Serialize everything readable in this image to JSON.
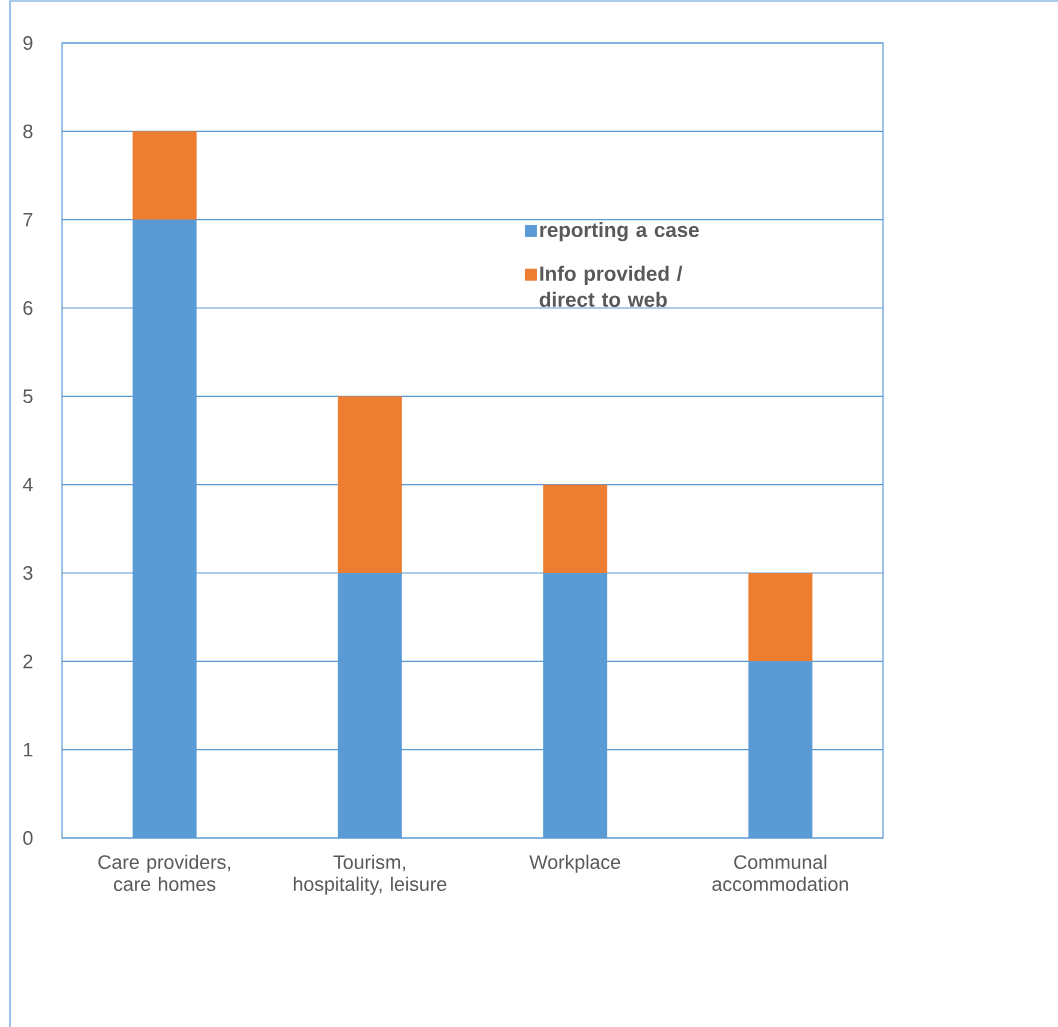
{
  "chart_data": {
    "type": "bar",
    "stacked": true,
    "categories": [
      "Care providers, care homes",
      "Tourism, hospitality, leisure",
      "Workplace",
      "Communal accommodation"
    ],
    "series": [
      {
        "name": "reporting a case",
        "color": "#5b9bd5",
        "values": [
          7,
          3,
          3,
          2
        ]
      },
      {
        "name": "Info provided / direct to web",
        "color": "#ed7d31",
        "values": [
          1,
          2,
          1,
          1
        ]
      }
    ],
    "ylim": [
      0,
      9
    ],
    "yticks": [
      0,
      1,
      2,
      3,
      4,
      5,
      6,
      7,
      8,
      9
    ],
    "grid": "y",
    "legend": "top right"
  }
}
